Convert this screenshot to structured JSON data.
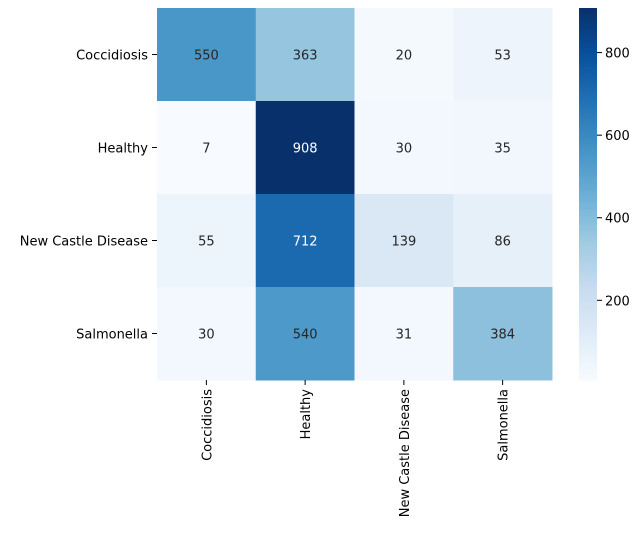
{
  "chart_data": {
    "type": "heatmap",
    "title": "",
    "xlabel": "",
    "ylabel": "",
    "x_categories": [
      "Coccidiosis",
      "Healthy",
      "New Castle Disease",
      "Salmonella"
    ],
    "y_categories": [
      "Coccidiosis",
      "Healthy",
      "New Castle Disease",
      "Salmonella"
    ],
    "values": [
      [
        550,
        363,
        20,
        53
      ],
      [
        7,
        908,
        30,
        35
      ],
      [
        55,
        712,
        139,
        86
      ],
      [
        30,
        540,
        31,
        384
      ]
    ],
    "colormap": "Blues",
    "color_range": [
      7,
      908
    ],
    "colorbar_ticks": [
      200,
      400,
      600,
      800
    ],
    "colors": {
      "low": "#f7fbff",
      "high": "#08306b",
      "annotation_dark_text": "#262626",
      "annotation_light_text": "#ffffff"
    }
  }
}
